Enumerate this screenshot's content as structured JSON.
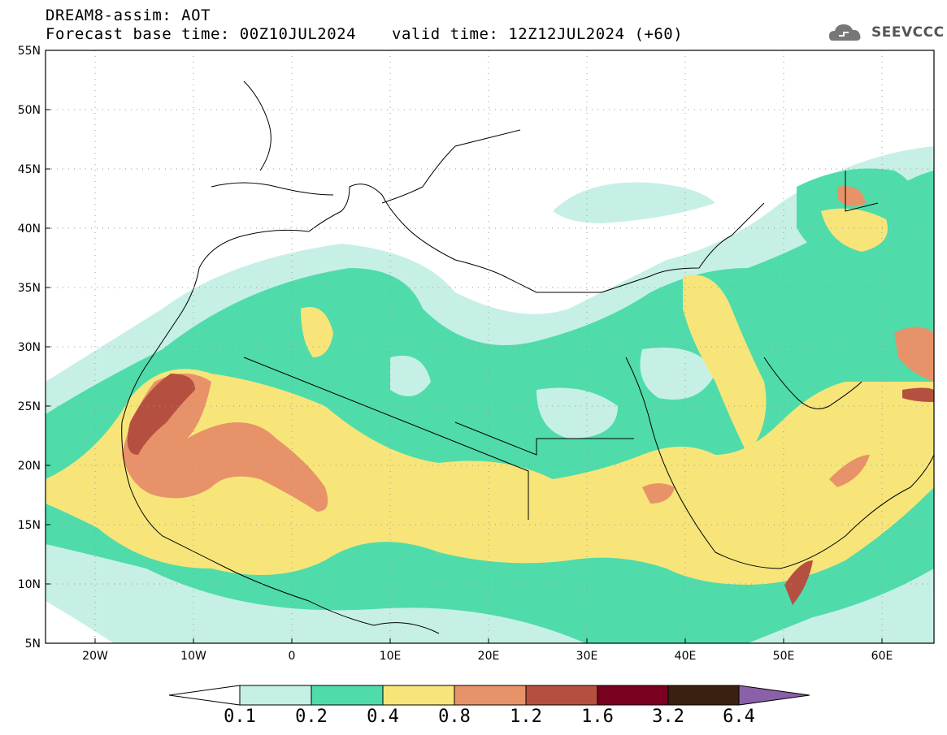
{
  "header": {
    "line1": "DREAM8-assim: AOT",
    "line2": "Forecast base time: 00Z10JUL2024",
    "valid": "valid time: 12Z12JUL2024 (+60)"
  },
  "logo": {
    "text": "SEEVCCC",
    "icon": "cloud-icon"
  },
  "map": {
    "lat_labels": [
      "55N",
      "50N",
      "45N",
      "40N",
      "35N",
      "30N",
      "25N",
      "20N",
      "15N",
      "10N",
      "5N"
    ],
    "lon_labels": [
      "20W",
      "10W",
      "0",
      "10E",
      "20E",
      "30E",
      "40E",
      "50E",
      "60E"
    ],
    "lat_range": [
      5,
      55
    ],
    "lon_range": [
      -25,
      65
    ],
    "grid": "dotted"
  },
  "colorbar": {
    "levels": [
      "0.1",
      "0.2",
      "0.4",
      "0.8",
      "1.2",
      "1.6",
      "3.2",
      "6.4"
    ],
    "colors": [
      "#ffffff",
      "#c6f0e6",
      "#4fdcaa",
      "#f7e57a",
      "#e8926a",
      "#b55040",
      "#7a0020",
      "#3a2010",
      "#8a60a8"
    ]
  }
}
